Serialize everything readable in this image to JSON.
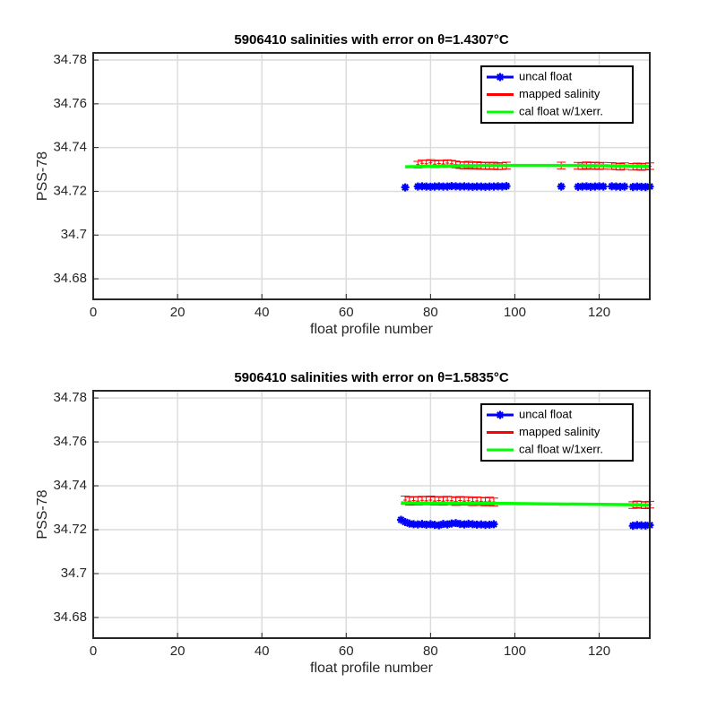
{
  "chart_data": [
    {
      "type": "line",
      "title": "5906410 salinities with error on θ=1.4307°C",
      "xlabel": "float profile number",
      "ylabel": "PSS-78",
      "xlim": [
        0,
        132
      ],
      "ylim": [
        34.6706,
        34.7833
      ],
      "xticks": [
        0,
        20,
        40,
        60,
        80,
        100,
        120
      ],
      "yticks": [
        34.68,
        34.7,
        34.72,
        34.74,
        34.76,
        34.78
      ],
      "grid": true,
      "legend": "northeast",
      "series": [
        {
          "name": "uncal float",
          "color": "#0000ff",
          "mode": "markers",
          "x": [
            74,
            77,
            78,
            79,
            80,
            81,
            82,
            83,
            84,
            85,
            86,
            87,
            88,
            89,
            90,
            91,
            92,
            93,
            94,
            95,
            96,
            97,
            98,
            111,
            115,
            116,
            117,
            118,
            119,
            120,
            121,
            123,
            124,
            125,
            126,
            128,
            129,
            130,
            131,
            132
          ],
          "values": [
            34.7218,
            34.7222,
            34.7223,
            34.7222,
            34.7221,
            34.7222,
            34.7223,
            34.7222,
            34.7222,
            34.7224,
            34.7223,
            34.7222,
            34.7223,
            34.7222,
            34.7221,
            34.7222,
            34.7222,
            34.7221,
            34.7222,
            34.7222,
            34.7223,
            34.7222,
            34.7224,
            34.7222,
            34.7221,
            34.7222,
            34.7223,
            34.7221,
            34.7222,
            34.7223,
            34.7222,
            34.7223,
            34.7222,
            34.7221,
            34.7222,
            34.722,
            34.7222,
            34.7221,
            34.722,
            34.7222
          ]
        },
        {
          "name": "mapped salinity",
          "color": "#ff0000",
          "mode": "errorbar",
          "x": [
            74,
            77,
            78,
            79,
            80,
            81,
            82,
            83,
            84,
            85,
            86,
            87,
            88,
            89,
            90,
            91,
            92,
            93,
            94,
            95,
            96,
            97,
            98,
            111,
            115,
            116,
            117,
            118,
            119,
            120,
            121,
            123,
            124,
            125,
            126,
            128,
            129,
            130,
            131,
            132
          ],
          "values": [
            null,
            34.7322,
            34.7328,
            34.7326,
            34.733,
            34.7324,
            34.7327,
            34.7325,
            34.7329,
            34.7326,
            34.7323,
            34.732,
            34.7318,
            34.7322,
            34.7317,
            34.732,
            34.7316,
            34.7318,
            34.7315,
            34.7318,
            34.7314,
            34.7316,
            34.7318,
            34.7318,
            34.7317,
            34.7315,
            34.7319,
            34.7316,
            34.7318,
            34.7315,
            34.7317,
            34.7316,
            34.7314,
            34.7312,
            34.7315,
            34.7312,
            34.7314,
            34.7311,
            34.7313,
            34.7315
          ],
          "errors": [
            null,
            0.0015,
            0.0015,
            0.0015,
            0.0015,
            0.0015,
            0.0015,
            0.0015,
            0.0015,
            0.0015,
            0.0015,
            0.0015,
            0.0015,
            0.0015,
            0.0015,
            0.0015,
            0.0015,
            0.0015,
            0.0015,
            0.0015,
            0.0015,
            0.0015,
            0.0015,
            0.0015,
            0.0015,
            0.0015,
            0.0015,
            0.0015,
            0.0015,
            0.0015,
            0.0015,
            0.0015,
            0.0015,
            0.0015,
            0.0015,
            0.0015,
            0.0015,
            0.0015,
            0.0015,
            0.0015
          ]
        },
        {
          "name": "cal float w/1xerr.",
          "color": "#00ff00",
          "mode": "line",
          "x": [
            74,
            77,
            78,
            79,
            80,
            81,
            82,
            83,
            84,
            85,
            86,
            87,
            88,
            89,
            90,
            91,
            92,
            93,
            94,
            95,
            96,
            97,
            98,
            111,
            115,
            116,
            117,
            118,
            119,
            120,
            121,
            123,
            124,
            125,
            126,
            128,
            129,
            130,
            131,
            132
          ],
          "values": [
            34.7312,
            34.7313,
            34.7314,
            34.7314,
            34.7315,
            34.7315,
            34.7315,
            34.7316,
            34.7316,
            34.7316,
            34.7316,
            34.7317,
            34.7317,
            34.7317,
            34.7317,
            34.7317,
            34.7318,
            34.7318,
            34.7318,
            34.7318,
            34.7318,
            34.7318,
            34.7318,
            34.7318,
            34.7318,
            34.7318,
            34.7317,
            34.7317,
            34.7317,
            34.7317,
            34.7317,
            34.7316,
            34.7316,
            34.7316,
            34.7316,
            34.7315,
            34.7315,
            34.7315,
            34.7314,
            34.7314
          ]
        }
      ]
    },
    {
      "type": "line",
      "title": "5906410 salinities with error on θ=1.5835°C",
      "xlabel": "float profile number",
      "ylabel": "PSS-78",
      "xlim": [
        0,
        132
      ],
      "ylim": [
        34.6706,
        34.7833
      ],
      "xticks": [
        0,
        20,
        40,
        60,
        80,
        100,
        120
      ],
      "yticks": [
        34.68,
        34.7,
        34.72,
        34.74,
        34.76,
        34.78
      ],
      "grid": true,
      "legend": "northeast",
      "series": [
        {
          "name": "uncal float",
          "color": "#0000ff",
          "mode": "markers",
          "x": [
            73,
            74,
            75,
            76,
            77,
            78,
            79,
            80,
            81,
            82,
            83,
            84,
            85,
            86,
            87,
            88,
            89,
            90,
            91,
            92,
            93,
            94,
            95,
            128,
            129,
            130,
            131,
            132
          ],
          "values": [
            34.7245,
            34.7235,
            34.7228,
            34.7225,
            34.7224,
            34.7226,
            34.7223,
            34.7225,
            34.7222,
            34.722,
            34.7226,
            34.7224,
            34.7228,
            34.723,
            34.7226,
            34.7224,
            34.7227,
            34.7225,
            34.7223,
            34.7224,
            34.7222,
            34.7223,
            34.7225,
            34.7218,
            34.7221,
            34.722,
            34.7219,
            34.7221
          ]
        },
        {
          "name": "mapped salinity",
          "color": "#ff0000",
          "mode": "errorbar",
          "x": [
            73,
            74,
            75,
            76,
            77,
            78,
            79,
            80,
            81,
            82,
            83,
            84,
            85,
            86,
            87,
            88,
            89,
            90,
            91,
            92,
            93,
            94,
            95,
            128,
            129,
            130,
            131,
            132
          ],
          "values": [
            null,
            34.7335,
            34.733,
            34.7333,
            34.7331,
            34.7334,
            34.7332,
            34.7335,
            34.7331,
            34.7333,
            34.733,
            34.7334,
            34.7332,
            34.7329,
            34.7333,
            34.733,
            34.7332,
            34.7328,
            34.7331,
            34.7329,
            34.7327,
            34.733,
            34.7326,
            34.7312,
            34.7315,
            34.7313,
            34.7311,
            34.7314
          ],
          "errors": [
            null,
            0.0018,
            0.0018,
            0.0018,
            0.0018,
            0.0018,
            0.0018,
            0.0018,
            0.0018,
            0.0018,
            0.0018,
            0.0018,
            0.0018,
            0.0018,
            0.0018,
            0.0018,
            0.0018,
            0.0018,
            0.0018,
            0.0018,
            0.0018,
            0.0018,
            0.0018,
            0.0015,
            0.0015,
            0.0015,
            0.0015,
            0.0015
          ]
        },
        {
          "name": "cal float w/1xerr.",
          "color": "#00ff00",
          "mode": "line",
          "x": [
            73,
            74,
            75,
            76,
            77,
            78,
            79,
            80,
            81,
            82,
            83,
            84,
            85,
            86,
            87,
            88,
            89,
            90,
            91,
            92,
            93,
            94,
            95,
            128,
            129,
            130,
            131,
            132
          ],
          "values": [
            34.7322,
            34.7322,
            34.7322,
            34.7322,
            34.7321,
            34.7321,
            34.7321,
            34.7321,
            34.7321,
            34.7321,
            34.7321,
            34.7321,
            34.7321,
            34.7321,
            34.7321,
            34.732,
            34.732,
            34.732,
            34.732,
            34.732,
            34.732,
            34.732,
            34.732,
            34.7314,
            34.7314,
            34.7313,
            34.7313,
            34.7313
          ]
        }
      ]
    }
  ]
}
